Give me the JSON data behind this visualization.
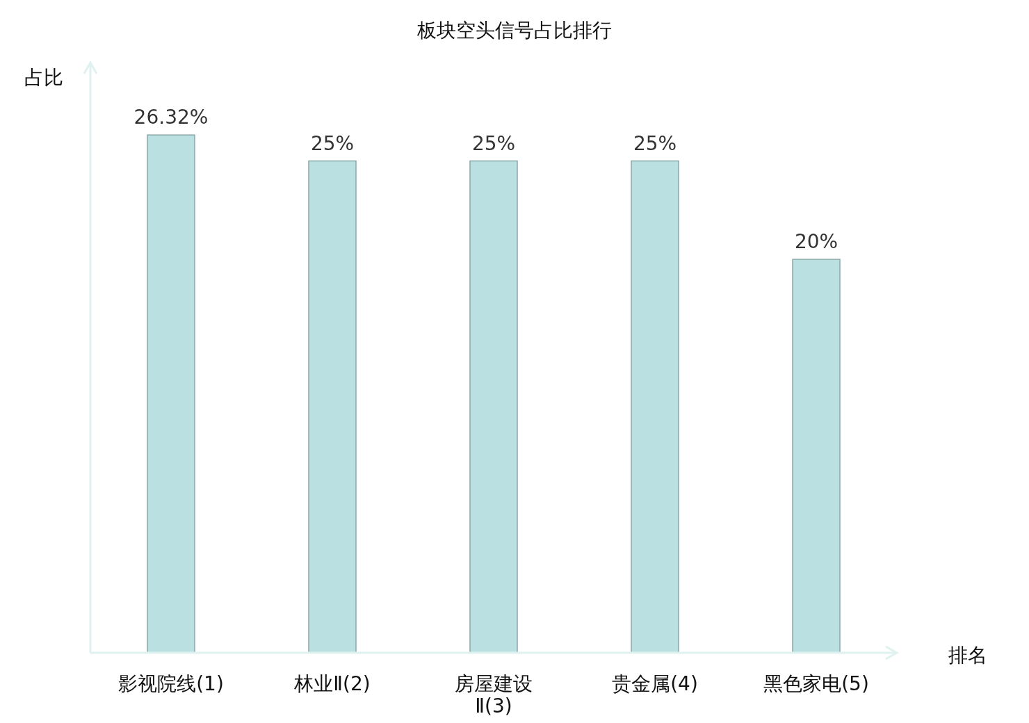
{
  "chart_data": {
    "type": "bar",
    "title": "板块空头信号占比排行",
    "xlabel": "排名",
    "ylabel": "占比",
    "categories": [
      "影视院线(1)",
      "林业Ⅱ(2)",
      "房屋建设Ⅱ(3)",
      "贵金属(4)",
      "黑色家电(5)"
    ],
    "values": [
      26.32,
      25,
      25,
      25,
      20
    ],
    "value_labels": [
      "26.32%",
      "25%",
      "25%",
      "25%",
      "20%"
    ],
    "color": "#bae0e2",
    "ylim": [
      0,
      30
    ]
  }
}
